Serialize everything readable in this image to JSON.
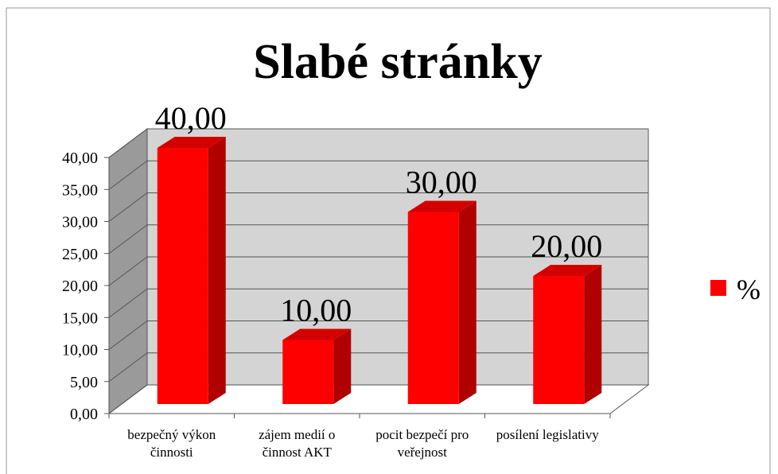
{
  "chart_data": {
    "type": "bar",
    "title": "Slabé stránky",
    "categories": [
      "bezpečný výkon činnosti",
      "zájem medií o činnost AKT",
      "pocit bezpečí pro veřejnost",
      "posílení legislativy"
    ],
    "series": [
      {
        "name": "%",
        "color": "#ff0000",
        "values": [
          40,
          10,
          30,
          20
        ],
        "value_labels": [
          "40,00",
          "10,00",
          "30,00",
          "20,00"
        ]
      }
    ],
    "ylim": [
      0,
      40
    ],
    "yticks": [
      {
        "value": 0,
        "label": "0,00"
      },
      {
        "value": 5,
        "label": "5,00"
      },
      {
        "value": 10,
        "label": "10,00"
      },
      {
        "value": 15,
        "label": "15,00"
      },
      {
        "value": 20,
        "label": "20,00"
      },
      {
        "value": 25,
        "label": "25,00"
      },
      {
        "value": 30,
        "label": "30,00"
      },
      {
        "value": 35,
        "label": "35,00"
      },
      {
        "value": 40,
        "label": "40,00"
      }
    ],
    "grid": true,
    "legend": "right"
  }
}
